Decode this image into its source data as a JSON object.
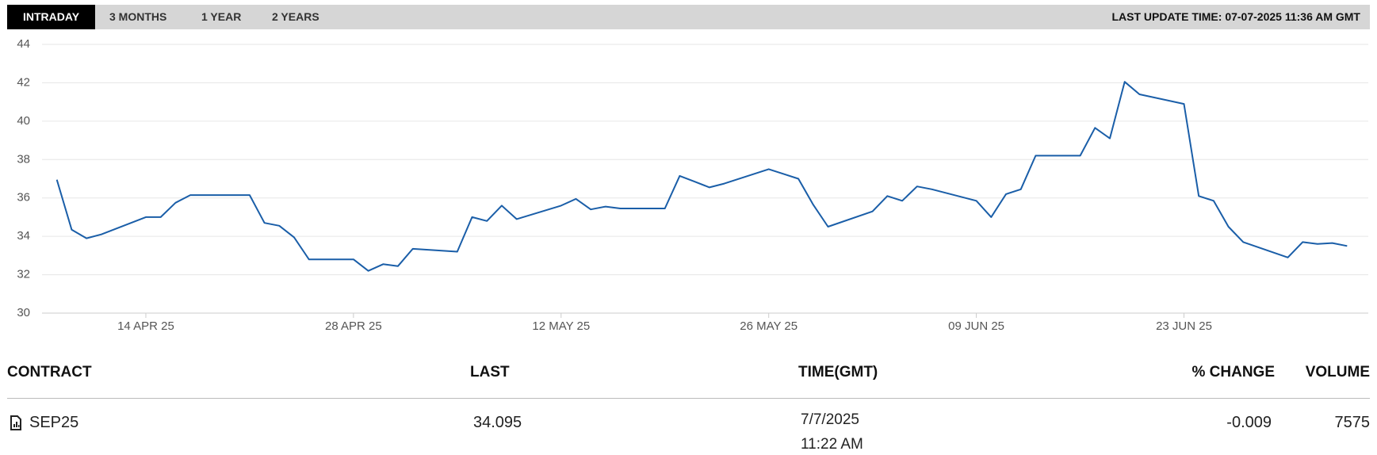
{
  "tabs": [
    "INTRADAY",
    "3 MONTHS",
    "1 YEAR",
    "2 YEARS"
  ],
  "active_tab": 0,
  "last_update": "LAST UPDATE TIME: 07-07-2025 11:36 AM GMT",
  "chart_data": {
    "type": "line",
    "color": "#1a5ea8",
    "grid": true,
    "x": [
      "2025-04-08",
      "2025-04-09",
      "2025-04-10",
      "2025-04-11",
      "2025-04-14",
      "2025-04-15",
      "2025-04-16",
      "2025-04-17",
      "2025-04-21",
      "2025-04-22",
      "2025-04-23",
      "2025-04-24",
      "2025-04-25",
      "2025-04-28",
      "2025-04-29",
      "2025-04-30",
      "2025-05-01",
      "2025-05-02",
      "2025-05-05",
      "2025-05-06",
      "2025-05-07",
      "2025-05-08",
      "2025-05-09",
      "2025-05-12",
      "2025-05-13",
      "2025-05-14",
      "2025-05-15",
      "2025-05-16",
      "2025-05-19",
      "2025-05-20",
      "2025-05-21",
      "2025-05-22",
      "2025-05-23",
      "2025-05-26",
      "2025-05-27",
      "2025-05-28",
      "2025-05-29",
      "2025-05-30",
      "2025-06-02",
      "2025-06-03",
      "2025-06-04",
      "2025-06-05",
      "2025-06-06",
      "2025-06-09",
      "2025-06-10",
      "2025-06-11",
      "2025-06-12",
      "2025-06-13",
      "2025-06-16",
      "2025-06-17",
      "2025-06-18",
      "2025-06-19",
      "2025-06-20",
      "2025-06-23",
      "2025-06-24",
      "2025-06-25",
      "2025-06-26",
      "2025-06-27",
      "2025-06-30",
      "2025-07-01",
      "2025-07-02",
      "2025-07-03",
      "2025-07-04"
    ],
    "values": [
      36.95,
      34.35,
      33.9,
      34.1,
      35.0,
      35.0,
      35.75,
      36.15,
      36.15,
      34.7,
      34.55,
      33.95,
      32.8,
      32.8,
      32.2,
      32.55,
      32.45,
      33.35,
      33.2,
      35.0,
      34.8,
      35.6,
      34.9,
      35.6,
      35.95,
      35.4,
      35.55,
      35.45,
      35.45,
      37.15,
      36.85,
      36.55,
      36.75,
      37.5,
      37.25,
      37.0,
      35.65,
      34.5,
      35.3,
      36.1,
      35.85,
      36.6,
      36.45,
      35.85,
      35.0,
      36.2,
      36.45,
      38.2,
      38.2,
      39.65,
      39.1,
      42.05,
      41.4,
      40.9,
      36.1,
      35.85,
      34.5,
      33.7,
      32.9,
      33.7,
      33.6,
      33.65,
      33.5
    ],
    "xlim": [
      "2025-04-07",
      "2025-07-05"
    ],
    "xticks": [
      {
        "value": "2025-04-14",
        "label": "14 APR 25"
      },
      {
        "value": "2025-04-28",
        "label": "28 APR 25"
      },
      {
        "value": "2025-05-12",
        "label": "12 MAY 25"
      },
      {
        "value": "2025-05-26",
        "label": "26 MAY 25"
      },
      {
        "value": "2025-06-09",
        "label": "09 JUN 25"
      },
      {
        "value": "2025-06-23",
        "label": "23 JUN 25"
      }
    ],
    "ylim": [
      30,
      44
    ],
    "yticks": [
      30,
      32,
      34,
      36,
      38,
      40,
      42,
      44
    ]
  },
  "table": {
    "headers": [
      "CONTRACT",
      "LAST",
      "TIME(GMT)",
      "% CHANGE",
      "VOLUME"
    ],
    "rows": [
      {
        "contract": "SEP25",
        "last": "34.095",
        "date": "7/7/2025",
        "time": "11:22 AM",
        "change": "-0.009",
        "volume": "7575"
      }
    ]
  }
}
